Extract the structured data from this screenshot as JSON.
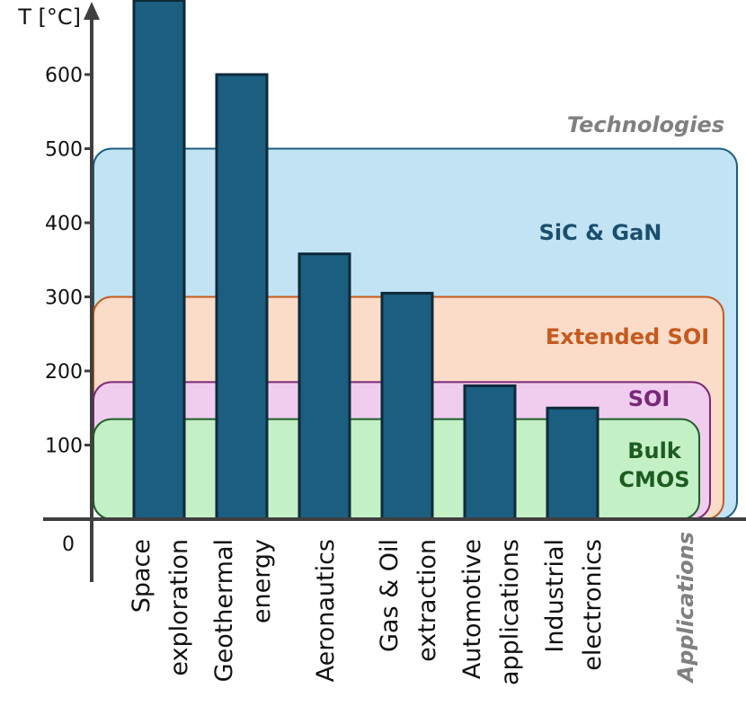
{
  "chart_data": {
    "type": "bar",
    "ylabel": "T [°C]",
    "y_ticks": [
      "0",
      "100",
      "200",
      "300",
      "400",
      "500",
      "600"
    ],
    "ylim": [
      0,
      700
    ],
    "categories": [
      [
        "Space",
        "exploration"
      ],
      [
        "Geothermal",
        "energy"
      ],
      [
        "Aeronautics"
      ],
      [
        "Gas & Oil",
        "extraction"
      ],
      [
        "Automotive",
        "applications"
      ],
      [
        "Industrial",
        "electronics"
      ]
    ],
    "values": [
      700,
      600,
      358,
      305,
      180,
      150
    ],
    "bar_color": "#1b5e80",
    "technologies_title": "Technologies",
    "applications_title": "Applications",
    "technologies": [
      {
        "label": "SiC & GaN",
        "max_temp": 500,
        "fill": "#c2e3f4",
        "stroke": "#1b5e80",
        "text_color": "#1b4f6e"
      },
      {
        "label": "Extended SOI",
        "max_temp": 300,
        "fill": "#fbdcc9",
        "stroke": "#c55a1e",
        "text_color": "#c55a1e"
      },
      {
        "label": "SOI",
        "max_temp": 185,
        "fill": "#f0cdee",
        "stroke": "#7a2878",
        "text_color": "#7a2878"
      },
      {
        "label": "Bulk\nCMOS",
        "max_temp": 135,
        "fill": "#c4f0c6",
        "stroke": "#1e5e2a",
        "text_color": "#1d5c21"
      }
    ]
  }
}
